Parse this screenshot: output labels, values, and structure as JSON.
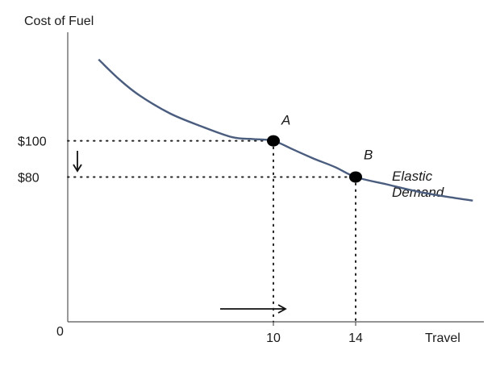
{
  "chart_data": {
    "type": "line",
    "title": "",
    "ylabel": "Cost of Fuel",
    "xlabel": "Travel",
    "origin_label": "0",
    "x_ticks": [
      {
        "value": 10,
        "label": "10"
      },
      {
        "value": 14,
        "label": "14"
      }
    ],
    "y_ticks": [
      {
        "value": 100,
        "label": "$100"
      },
      {
        "value": 80,
        "label": "$80"
      }
    ],
    "xlim": [
      0,
      20
    ],
    "ylim": [
      0,
      160
    ],
    "series": [
      {
        "name": "Elastic Demand",
        "color": "#4a5d7e",
        "x": [
          1.5,
          2.5,
          3.5,
          5,
          6.5,
          8,
          9,
          10,
          11,
          12,
          13,
          14,
          15.5,
          17,
          18.5,
          19.7
        ],
        "y": [
          145,
          134,
          125,
          115,
          108,
          102,
          101,
          100,
          95,
          90,
          85.5,
          80,
          76,
          72,
          69,
          67
        ]
      }
    ],
    "points": [
      {
        "label": "A",
        "x": 10,
        "y": 100
      },
      {
        "label": "B",
        "x": 14,
        "y": 80
      }
    ],
    "curve_label_lines": [
      "Elastic",
      "Demand"
    ],
    "grid": false,
    "legend": "none"
  }
}
